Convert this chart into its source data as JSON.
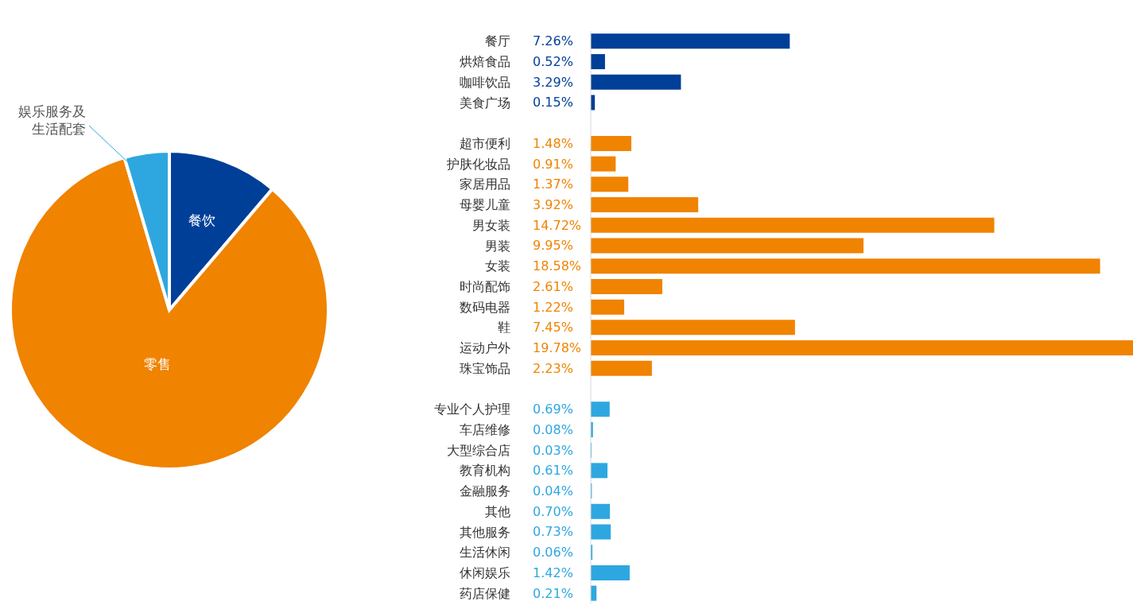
{
  "chart_data": [
    {
      "type": "pie",
      "categories": [
        "餐饮",
        "零售",
        "娱乐服务及生活配套"
      ],
      "values": [
        11.22,
        84.22,
        4.56
      ],
      "colors": [
        "#003f98",
        "#f08300",
        "#2ea7e0"
      ],
      "legend": false
    },
    {
      "type": "bar",
      "orientation": "horizontal",
      "legend": false,
      "grid": false,
      "categories": [
        "餐厅",
        "烘焙食品",
        "咖啡饮品",
        "美食广场",
        null,
        "超市便利",
        "护肤化妆品",
        "家居用品",
        "母婴儿童",
        "男女装",
        "男装",
        "女装",
        "时尚配饰",
        "数码电器",
        "鞋",
        "运动户外",
        "珠宝饰品",
        null,
        "专业个人护理",
        "车店维修",
        "大型综合店",
        "教育机构",
        "金融服务",
        "其他",
        "其他服务",
        "生活休闲",
        "休闲娱乐",
        "药店保健"
      ],
      "values": [
        7.26,
        0.52,
        3.29,
        0.15,
        null,
        1.48,
        0.91,
        1.37,
        3.92,
        14.72,
        9.95,
        18.58,
        2.61,
        1.22,
        7.45,
        19.78,
        2.23,
        null,
        0.69,
        0.08,
        0.03,
        0.61,
        0.04,
        0.7,
        0.73,
        0.06,
        1.42,
        0.21
      ],
      "value_labels": [
        "7.26%",
        "0.52%",
        "3.29%",
        "0.15%",
        null,
        "1.48%",
        "0.91%",
        "1.37%",
        "3.92%",
        "14.72%",
        "9.95%",
        "18.58%",
        "2.61%",
        "1.22%",
        "7.45%",
        "19.78%",
        "2.23%",
        null,
        "0.69%",
        "0.08%",
        "0.03%",
        "0.61%",
        "0.04%",
        "0.70%",
        "0.73%",
        "0.06%",
        "1.42%",
        "0.21%"
      ],
      "colors": [
        "#003f98",
        "#003f98",
        "#003f98",
        "#003f98",
        null,
        "#f08300",
        "#f08300",
        "#f08300",
        "#f08300",
        "#f08300",
        "#f08300",
        "#f08300",
        "#f08300",
        "#f08300",
        "#f08300",
        "#f08300",
        "#f08300",
        null,
        "#2ea7e0",
        "#2ea7e0",
        "#2ea7e0",
        "#2ea7e0",
        "#2ea7e0",
        "#2ea7e0",
        "#2ea7e0",
        "#2ea7e0",
        "#2ea7e0",
        "#2ea7e0"
      ],
      "xlim": [
        0,
        19.78
      ]
    }
  ]
}
